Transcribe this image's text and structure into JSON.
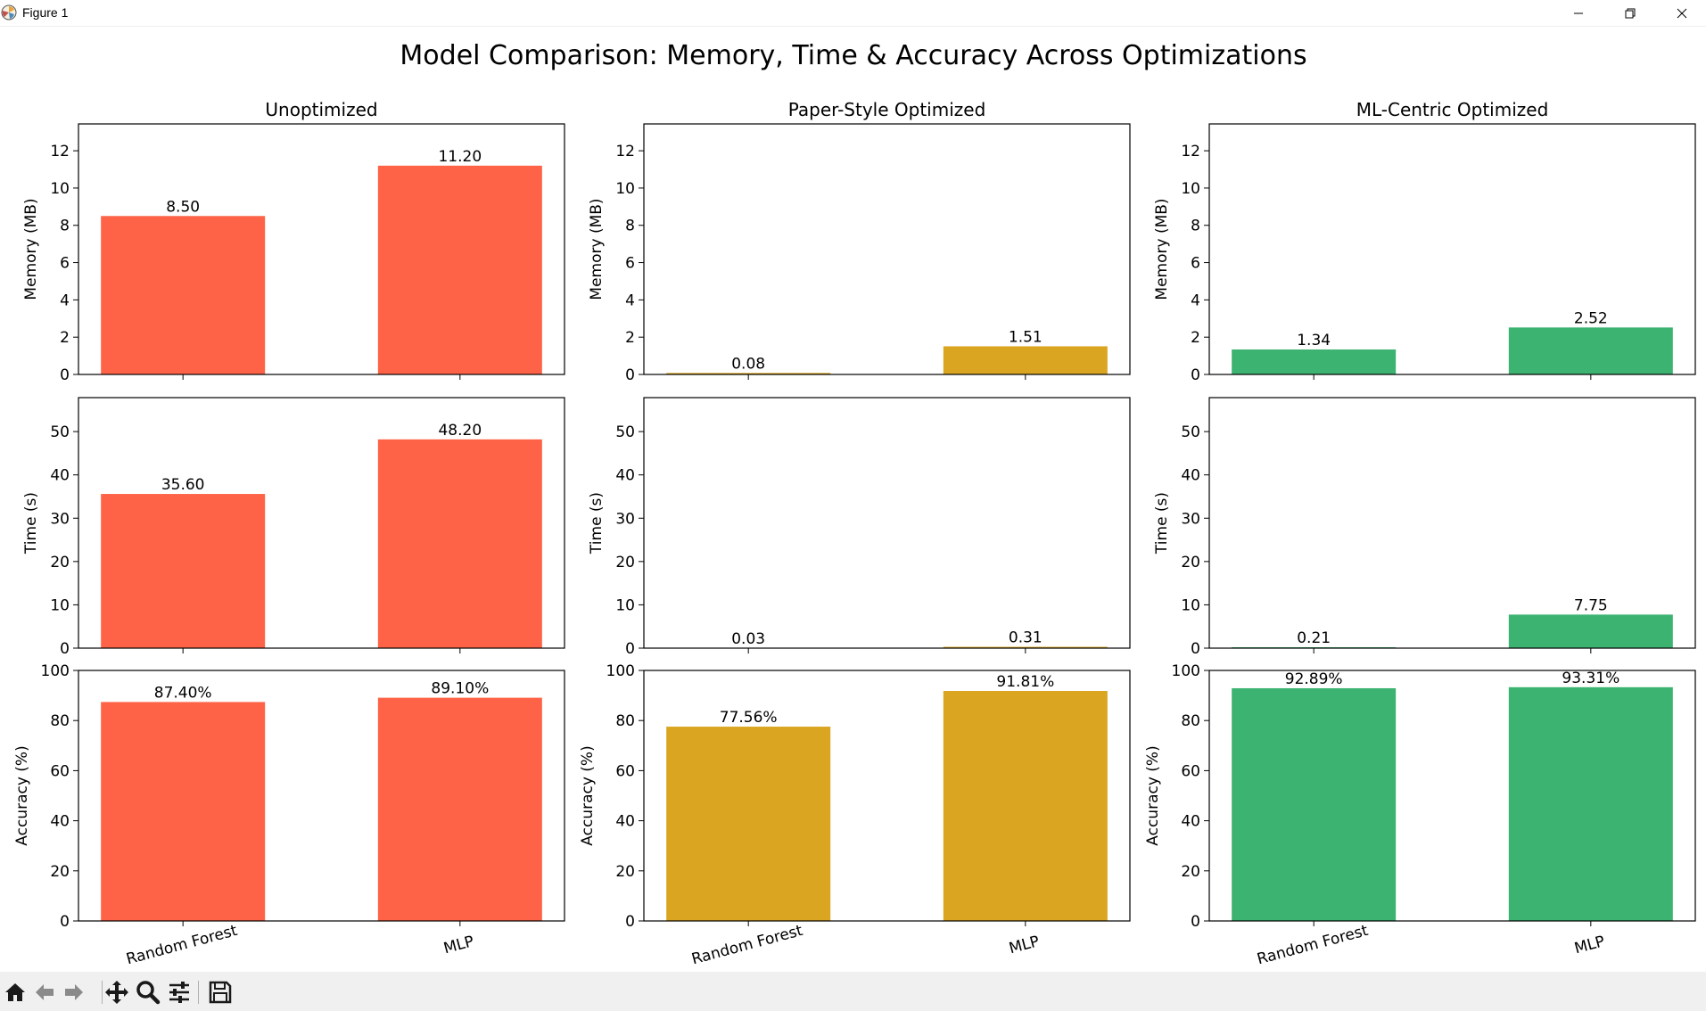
{
  "window": {
    "title": "Figure 1"
  },
  "toolbar": {
    "buttons": [
      "home-icon",
      "back-arrow-icon",
      "forward-arrow-icon",
      "pan-icon",
      "zoom-icon",
      "configure-subplots-icon",
      "save-icon"
    ]
  },
  "chart_data": {
    "type": "bar",
    "suptitle": "Model Comparison: Memory, Time & Accuracy Across Optimizations",
    "categories": [
      "Random Forest",
      "MLP"
    ],
    "metrics": [
      {
        "ylabel": "Memory (MB)",
        "ylim": [
          0,
          13.44
        ],
        "ticks": [
          0,
          2,
          4,
          6,
          8,
          10,
          12
        ],
        "label_suffix": ""
      },
      {
        "ylabel": "Time (s)",
        "ylim": [
          0,
          57.84
        ],
        "ticks": [
          0,
          10,
          20,
          30,
          40,
          50
        ],
        "label_suffix": ""
      },
      {
        "ylabel": "Accuracy (%)",
        "ylim": [
          0,
          100
        ],
        "ticks": [
          0,
          20,
          40,
          60,
          80,
          100
        ],
        "label_suffix": "%"
      }
    ],
    "groups": [
      {
        "title": "Unoptimized",
        "color": "#ff6347",
        "values": {
          "memory": [
            8.5,
            11.2
          ],
          "time": [
            35.6,
            48.2
          ],
          "accuracy": [
            87.4,
            89.1
          ]
        },
        "labels": {
          "memory": [
            "8.50",
            "11.20"
          ],
          "time": [
            "35.60",
            "48.20"
          ],
          "accuracy": [
            "87.40%",
            "89.10%"
          ]
        }
      },
      {
        "title": "Paper-Style Optimized",
        "color": "#daa520",
        "values": {
          "memory": [
            0.08,
            1.51
          ],
          "time": [
            0.03,
            0.31
          ],
          "accuracy": [
            77.56,
            91.81
          ]
        },
        "labels": {
          "memory": [
            "0.08",
            "1.51"
          ],
          "time": [
            "0.03",
            "0.31"
          ],
          "accuracy": [
            "77.56%",
            "91.81%"
          ]
        }
      },
      {
        "title": "ML-Centric Optimized",
        "color": "#3cb371",
        "values": {
          "memory": [
            1.34,
            2.52
          ],
          "time": [
            0.21,
            7.75
          ],
          "accuracy": [
            92.89,
            93.31
          ]
        },
        "labels": {
          "memory": [
            "1.34",
            "2.52"
          ],
          "time": [
            "0.21",
            "7.75"
          ],
          "accuracy": [
            "92.89%",
            "93.31%"
          ]
        }
      }
    ]
  }
}
